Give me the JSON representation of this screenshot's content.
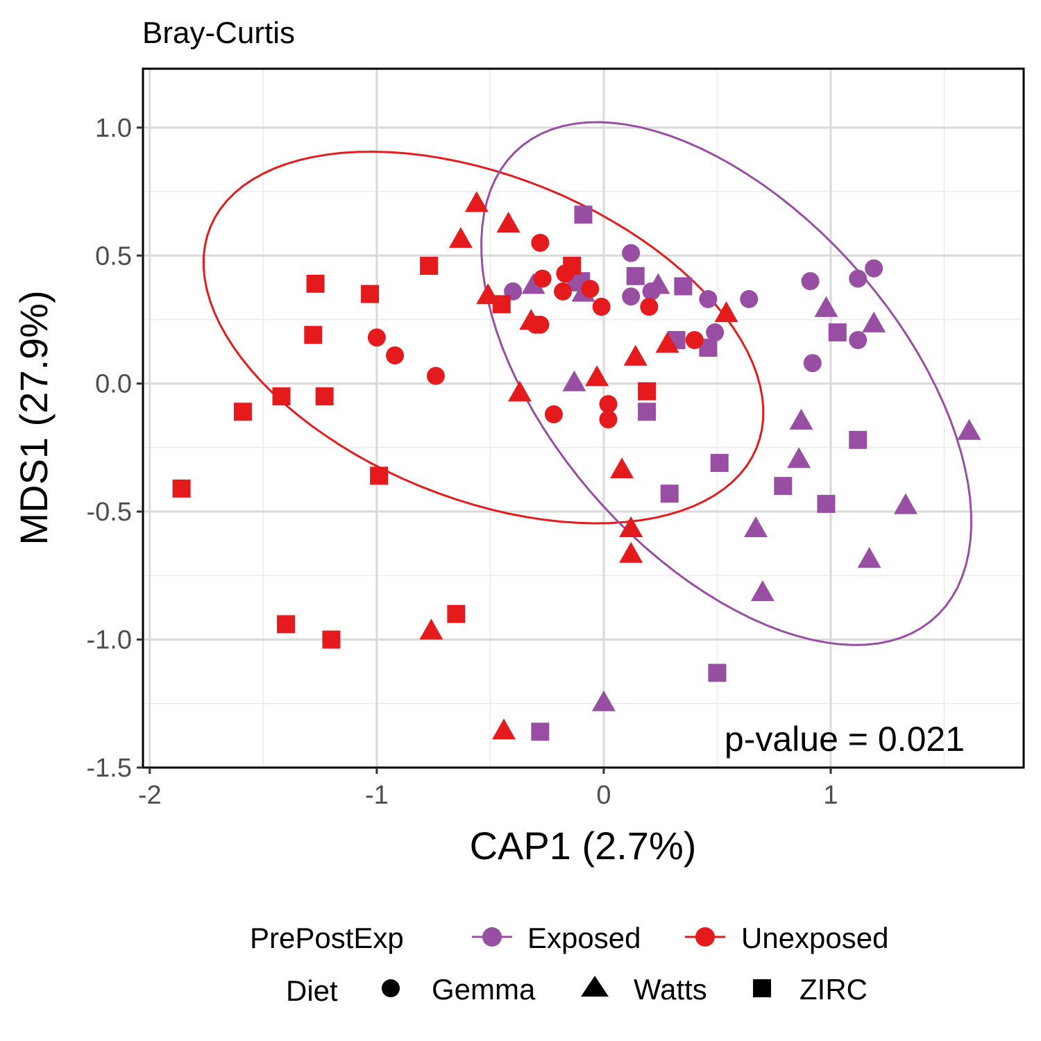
{
  "chart_data": {
    "type": "scatter",
    "title": "Bray-Curtis",
    "xlabel": "CAP1 (2.7%)",
    "ylabel": "MDS1 (27.9%)",
    "xlim": [
      -2.03,
      1.85
    ],
    "ylim": [
      -1.5,
      1.23
    ],
    "x_ticks": [
      -2,
      -1,
      0,
      1
    ],
    "x_tick_labels": [
      "-2",
      "-1",
      "0",
      "1"
    ],
    "y_ticks": [
      -1.5,
      -1.0,
      -0.5,
      0.0,
      0.5,
      1.0
    ],
    "y_tick_labels": [
      "-1.5",
      "-1.0",
      "-0.5",
      "0.0",
      "0.5",
      "1.0"
    ],
    "grid": true,
    "annotation": "p-value = 0.021",
    "colors": {
      "Exposed": "#984ea3",
      "Unexposed": "#e41a1c"
    },
    "legend": {
      "position": "bottom",
      "color_title": "PrePostExp",
      "color_items": [
        "Exposed",
        "Unexposed"
      ],
      "shape_title": "Diet",
      "shape_items": [
        {
          "label": "Gemma",
          "shape": "circle"
        },
        {
          "label": "Watts",
          "shape": "triangle"
        },
        {
          "label": "ZIRC",
          "shape": "square"
        }
      ]
    },
    "ellipses": [
      {
        "group": "Unexposed",
        "cx": -0.53,
        "cy": 0.18,
        "a": 1.28,
        "b": 0.64,
        "angle_deg": -18
      },
      {
        "group": "Exposed",
        "cx": 0.54,
        "cy": 0.0,
        "a": 1.3,
        "b": 0.72,
        "angle_deg": -42
      }
    ],
    "series": [
      {
        "group": "Exposed",
        "shape": "circle",
        "points": [
          [
            -0.4,
            0.36
          ],
          [
            -0.16,
            0.43
          ],
          [
            0.12,
            0.51
          ],
          [
            0.12,
            0.34
          ],
          [
            0.21,
            0.36
          ],
          [
            0.46,
            0.33
          ],
          [
            0.49,
            0.2
          ],
          [
            0.64,
            0.33
          ],
          [
            0.91,
            0.4
          ],
          [
            1.12,
            0.41
          ],
          [
            1.19,
            0.45
          ],
          [
            1.12,
            0.17
          ],
          [
            0.92,
            0.08
          ]
        ]
      },
      {
        "group": "Exposed",
        "shape": "triangle",
        "points": [
          [
            -0.31,
            0.38
          ],
          [
            -0.09,
            0.35
          ],
          [
            -0.13,
            0.39
          ],
          [
            0.24,
            0.38
          ],
          [
            0.98,
            0.29
          ],
          [
            1.19,
            0.23
          ],
          [
            -0.13,
            0.0
          ],
          [
            0.87,
            -0.15
          ],
          [
            0.86,
            -0.3
          ],
          [
            1.61,
            -0.19
          ],
          [
            1.33,
            -0.48
          ],
          [
            0.67,
            -0.57
          ],
          [
            1.17,
            -0.69
          ],
          [
            0.7,
            -0.82
          ],
          [
            0.0,
            -1.25
          ]
        ]
      },
      {
        "group": "Exposed",
        "shape": "square",
        "points": [
          [
            -0.09,
            0.66
          ],
          [
            -0.1,
            0.4
          ],
          [
            0.14,
            0.42
          ],
          [
            0.35,
            0.38
          ],
          [
            0.32,
            0.17
          ],
          [
            0.46,
            0.14
          ],
          [
            1.03,
            0.2
          ],
          [
            0.19,
            -0.11
          ],
          [
            0.51,
            -0.31
          ],
          [
            1.12,
            -0.22
          ],
          [
            0.29,
            -0.43
          ],
          [
            0.79,
            -0.4
          ],
          [
            0.98,
            -0.47
          ],
          [
            0.5,
            -1.13
          ],
          [
            -0.28,
            -1.36
          ]
        ]
      },
      {
        "group": "Unexposed",
        "shape": "circle",
        "points": [
          [
            -0.28,
            0.55
          ],
          [
            -0.27,
            0.41
          ],
          [
            -0.17,
            0.43
          ],
          [
            -0.18,
            0.36
          ],
          [
            -0.06,
            0.37
          ],
          [
            -0.01,
            0.3
          ],
          [
            0.2,
            0.3
          ],
          [
            -0.28,
            0.23
          ],
          [
            -0.3,
            0.23
          ],
          [
            0.4,
            0.17
          ],
          [
            -1.0,
            0.18
          ],
          [
            -0.92,
            0.11
          ],
          [
            -0.74,
            0.03
          ],
          [
            -0.22,
            -0.12
          ],
          [
            0.02,
            -0.08
          ],
          [
            0.02,
            -0.14
          ]
        ]
      },
      {
        "group": "Unexposed",
        "shape": "triangle",
        "points": [
          [
            -0.56,
            0.7
          ],
          [
            -0.42,
            0.62
          ],
          [
            -0.63,
            0.56
          ],
          [
            -0.51,
            0.34
          ],
          [
            -0.32,
            0.24
          ],
          [
            0.54,
            0.27
          ],
          [
            0.28,
            0.15
          ],
          [
            0.14,
            0.1
          ],
          [
            -0.37,
            -0.04
          ],
          [
            -0.03,
            0.02
          ],
          [
            0.08,
            -0.34
          ],
          [
            0.12,
            -0.57
          ],
          [
            0.12,
            -0.67
          ],
          [
            -0.76,
            -0.97
          ],
          [
            -0.44,
            -1.36
          ]
        ]
      },
      {
        "group": "Unexposed",
        "shape": "square",
        "points": [
          [
            -0.14,
            0.46
          ],
          [
            -0.77,
            0.46
          ],
          [
            -1.27,
            0.39
          ],
          [
            -1.03,
            0.35
          ],
          [
            -0.45,
            0.31
          ],
          [
            -1.28,
            0.19
          ],
          [
            -1.42,
            -0.05
          ],
          [
            -1.23,
            -0.05
          ],
          [
            -1.59,
            -0.11
          ],
          [
            0.19,
            -0.03
          ],
          [
            -0.99,
            -0.36
          ],
          [
            -1.86,
            -0.41
          ],
          [
            -1.4,
            -0.94
          ],
          [
            -1.2,
            -1.0
          ],
          [
            -0.65,
            -0.9
          ]
        ]
      }
    ]
  }
}
